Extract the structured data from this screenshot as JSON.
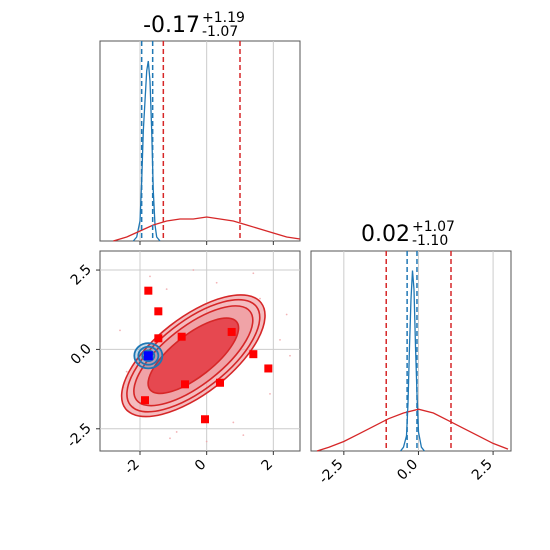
{
  "chart_data": {
    "type": "corner",
    "panels": [
      {
        "id": "marginal-param1",
        "kind": "histogram",
        "title": {
          "median": "-0.17",
          "plus": "+1.19",
          "minus": "-1.07"
        },
        "xlim": [
          -3.2,
          2.8
        ],
        "grid": true,
        "quantile_lines": [
          {
            "series": "blue",
            "x": [
              -1.95,
              -1.62
            ]
          },
          {
            "series": "red",
            "x": [
              -1.3,
              1.0
            ]
          }
        ],
        "series": [
          {
            "name": "blue",
            "color": "#1f77b4",
            "x": [
              -2.2,
              -2.1,
              -2.0,
              -1.95,
              -1.9,
              -1.85,
              -1.8,
              -1.75,
              -1.7,
              -1.65,
              -1.6,
              -1.55,
              -1.5,
              -1.4
            ],
            "y": [
              0.0,
              0.02,
              0.1,
              0.3,
              0.55,
              0.7,
              0.85,
              0.9,
              0.8,
              0.55,
              0.25,
              0.08,
              0.02,
              0.0
            ]
          },
          {
            "name": "red",
            "color": "#d62728",
            "x": [
              -2.8,
              -2.4,
              -2.0,
              -1.6,
              -1.2,
              -0.8,
              -0.4,
              0.0,
              0.4,
              0.8,
              1.2,
              1.6,
              2.0,
              2.4,
              2.8
            ],
            "y": [
              0.0,
              0.02,
              0.05,
              0.08,
              0.1,
              0.11,
              0.11,
              0.12,
              0.11,
              0.1,
              0.08,
              0.06,
              0.04,
              0.02,
              0.01
            ]
          }
        ],
        "xticks": [
          -2,
          0,
          2
        ]
      },
      {
        "id": "marginal-param2",
        "kind": "histogram",
        "title": {
          "median": "0.02",
          "plus": "+1.07",
          "minus": "-1.10"
        },
        "xlim": [
          -3.6,
          3.1
        ],
        "grid": true,
        "quantile_lines": [
          {
            "series": "blue",
            "x": [
              -0.38,
              -0.05
            ]
          },
          {
            "series": "red",
            "x": [
              -1.08,
              1.09
            ]
          }
        ],
        "series": [
          {
            "name": "blue",
            "color": "#1f77b4",
            "x": [
              -0.6,
              -0.5,
              -0.4,
              -0.35,
              -0.3,
              -0.25,
              -0.2,
              -0.15,
              -0.1,
              -0.05,
              0.0,
              0.1,
              0.2
            ],
            "y": [
              0.0,
              0.02,
              0.08,
              0.25,
              0.55,
              0.8,
              0.95,
              0.85,
              0.55,
              0.3,
              0.1,
              0.02,
              0.0
            ]
          },
          {
            "name": "red",
            "color": "#d62728",
            "x": [
              -3.4,
              -3.0,
              -2.5,
              -2.0,
              -1.5,
              -1.0,
              -0.5,
              0.0,
              0.5,
              1.0,
              1.5,
              2.0,
              2.5,
              3.0
            ],
            "y": [
              0.0,
              0.02,
              0.05,
              0.09,
              0.13,
              0.17,
              0.2,
              0.22,
              0.2,
              0.16,
              0.12,
              0.08,
              0.04,
              0.01
            ]
          }
        ],
        "xticks": [
          -2.5,
          0.0,
          2.5
        ],
        "xtick_labels": [
          "-2.5",
          "0.0",
          "2.5"
        ]
      },
      {
        "id": "joint",
        "kind": "2d-contour",
        "xlim": [
          -3.2,
          2.8
        ],
        "ylim": [
          -3.2,
          3.1
        ],
        "grid": true,
        "xticks": [
          -2,
          0,
          2
        ],
        "yticks": [
          -2.5,
          0.0,
          2.5
        ],
        "ytick_labels": [
          "-2.5",
          "0.0",
          "2.5"
        ],
        "red_points": {
          "x": [
            -1.75,
            -1.45,
            -0.75,
            0.75,
            1.4,
            1.85,
            0.4,
            -0.05,
            -0.65,
            -1.85,
            -1.45
          ],
          "y": [
            1.85,
            1.2,
            0.4,
            0.55,
            -0.15,
            -0.6,
            -1.05,
            -2.2,
            -1.1,
            -1.6,
            0.35
          ]
        },
        "blue_point": {
          "x": -1.75,
          "y": -0.2
        },
        "colors": {
          "red_fill": "#e5434b",
          "red_light": "#f0a0a4",
          "red_line": "#d62728",
          "blue": "#1f77b4",
          "blue_point": "#0000ff"
        }
      }
    ]
  }
}
